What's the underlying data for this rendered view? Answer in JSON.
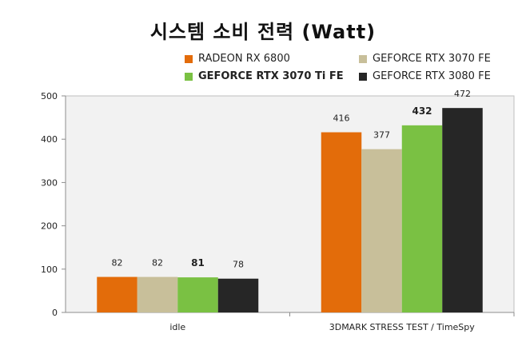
{
  "chart_data": {
    "type": "bar",
    "title": "시스템 소비 전력 (Watt)",
    "categories": [
      "idle",
      "3DMARK STRESS TEST / TimeSpy"
    ],
    "series": [
      {
        "name": "RADEON RX 6800",
        "values": [
          82,
          416
        ],
        "color": "#e36c0a",
        "bold": false
      },
      {
        "name": "GEFORCE RTX 3070 FE",
        "values": [
          82,
          377
        ],
        "color": "#c8bf9a",
        "bold": false
      },
      {
        "name": "GEFORCE RTX 3070 Ti FE",
        "values": [
          81,
          432
        ],
        "color": "#7ac143",
        "bold": true
      },
      {
        "name": "GEFORCE RTX 3080 FE",
        "values": [
          78,
          472
        ],
        "color": "#262626",
        "bold": false
      }
    ],
    "ylim": [
      0,
      500
    ],
    "yticks": [
      0,
      100,
      200,
      300,
      400,
      500
    ],
    "grid": false,
    "legend_position": "top",
    "plot_background": "#f2f2f2"
  }
}
